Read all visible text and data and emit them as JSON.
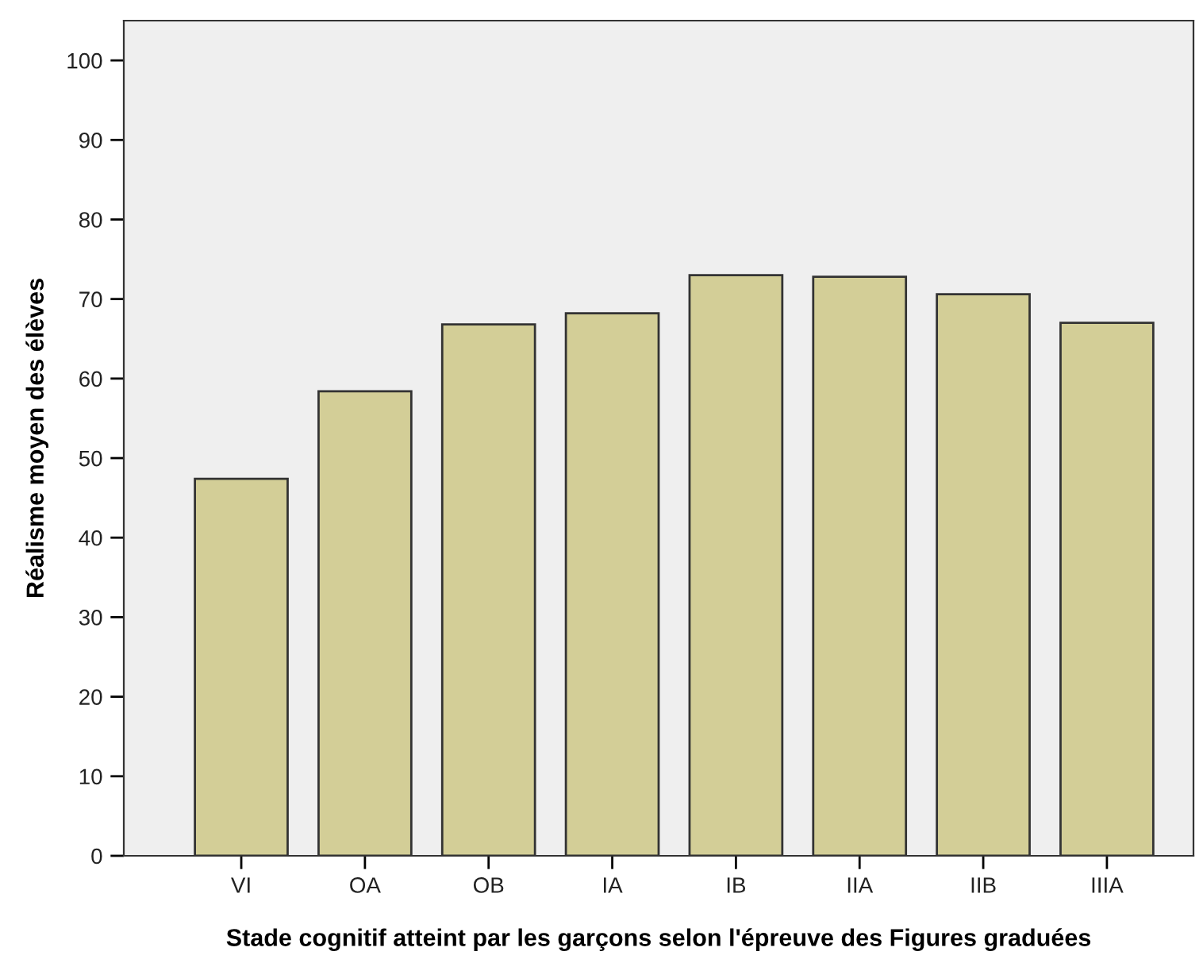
{
  "chart_data": {
    "type": "bar",
    "xlabel": "Stade cognitif atteint par les garçons selon l'épreuve des Figures graduées",
    "ylabel": "Réalisme moyen des élèves",
    "categories": [
      "VI",
      "OA",
      "OB",
      "IA",
      "IB",
      "IIA",
      "IIB",
      "IIIA"
    ],
    "values": [
      47.4,
      58.4,
      66.8,
      68.2,
      73.0,
      72.8,
      70.6,
      67.0
    ],
    "color": "#d3ce97",
    "ylim": [
      0,
      105
    ],
    "yticks": [
      0,
      10,
      20,
      30,
      40,
      50,
      60,
      70,
      80,
      90,
      100
    ],
    "grid": false
  }
}
